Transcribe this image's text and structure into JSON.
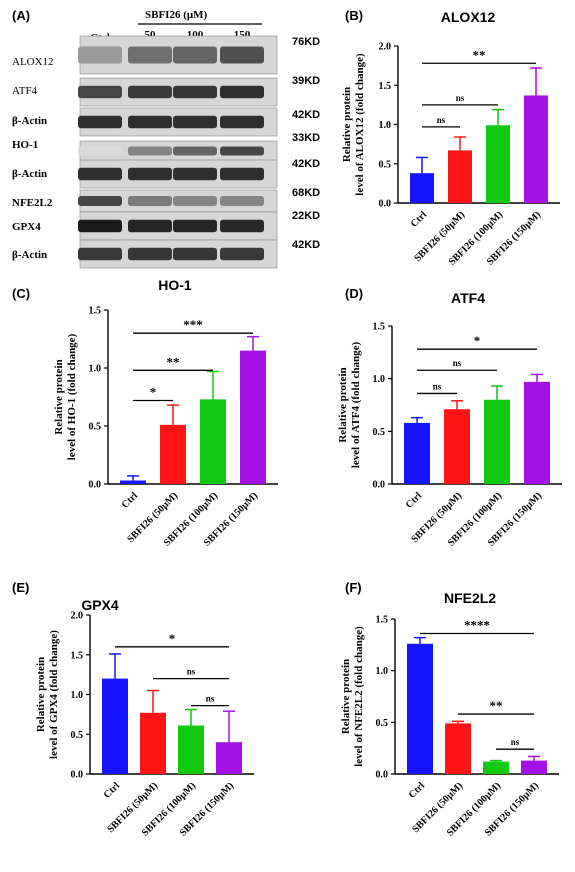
{
  "colors": [
    "#1515ff",
    "#ff1515",
    "#11c911",
    "#a311e6"
  ],
  "western_blot": {
    "panel_letter": "(A)",
    "treatment_header": "SBFI26 (μM)",
    "lane_labels": [
      "Ctrl",
      "50",
      "100",
      "150"
    ],
    "rows": [
      {
        "protein": "ALOX12",
        "kd": "76KD",
        "style": "normal",
        "intensity": [
          0.35,
          0.55,
          0.6,
          0.7
        ]
      },
      {
        "protein": "ATF4",
        "kd": "39KD",
        "style": "normal",
        "intensity": [
          0.75,
          0.8,
          0.82,
          0.85
        ]
      },
      {
        "protein": "β-Actin",
        "kd": "42KD",
        "style": "bold",
        "intensity": [
          0.85,
          0.85,
          0.85,
          0.85
        ]
      },
      {
        "protein": "HO-1",
        "kd": "33KD",
        "style": "bold",
        "intensity": [
          0.05,
          0.45,
          0.6,
          0.75
        ]
      },
      {
        "protein": "β-Actin",
        "kd": "42KD",
        "style": "bold",
        "intensity": [
          0.85,
          0.85,
          0.85,
          0.85
        ]
      },
      {
        "protein": "NFE2L2",
        "kd": "68KD",
        "style": "bold",
        "intensity": [
          0.75,
          0.5,
          0.45,
          0.45
        ]
      },
      {
        "protein": "GPX4",
        "kd": "22KD",
        "style": "bold",
        "intensity": [
          0.95,
          0.9,
          0.9,
          0.88
        ]
      },
      {
        "protein": "β-Actin",
        "kd": "42KD",
        "style": "bold",
        "intensity": [
          0.8,
          0.82,
          0.82,
          0.8
        ]
      }
    ]
  },
  "chart_data": [
    {
      "panel": "(B)",
      "type": "bar",
      "title": "ALOX12",
      "ylabel_line1": "Relative protein",
      "ylabel_line2": "level of ALOX12 (fold change)",
      "categories": [
        "Ctrl",
        "SBFI26 (50μM)",
        "SBFI26 (100μM)",
        "SBFI26 (150μM)"
      ],
      "values": [
        0.38,
        0.67,
        0.99,
        1.37
      ],
      "errors": [
        0.2,
        0.17,
        0.2,
        0.35
      ],
      "ylim": [
        0,
        2.0
      ],
      "yticks": [
        "0.0",
        "0.5",
        "1.0",
        "1.5",
        "2.0"
      ],
      "ytick_values": [
        0,
        0.5,
        1.0,
        1.5,
        2.0
      ],
      "significance": [
        {
          "from": 0,
          "to": 3,
          "label": "**",
          "y": 1.78
        },
        {
          "from": 0,
          "to": 2,
          "label": "ns",
          "y": 1.25
        },
        {
          "from": 0,
          "to": 1,
          "label": "ns",
          "y": 0.97
        }
      ]
    },
    {
      "panel": "(C)",
      "type": "bar",
      "title": "HO-1",
      "ylabel_line1": "Relative protein",
      "ylabel_line2": "level of HO-1 (fold change)",
      "categories": [
        "Ctrl",
        "SBFI26 (50μM)",
        "SBFI26 (100μM)",
        "SBFI26 (150μM)"
      ],
      "values": [
        0.03,
        0.51,
        0.73,
        1.15
      ],
      "errors": [
        0.04,
        0.17,
        0.24,
        0.12
      ],
      "ylim": [
        0,
        1.5
      ],
      "yticks": [
        "0.0",
        "0.5",
        "1.0",
        "1.5"
      ],
      "ytick_values": [
        0,
        0.5,
        1.0,
        1.5
      ],
      "significance": [
        {
          "from": 0,
          "to": 3,
          "label": "***",
          "y": 1.3
        },
        {
          "from": 0,
          "to": 2,
          "label": "**",
          "y": 0.98
        },
        {
          "from": 0,
          "to": 1,
          "label": "*",
          "y": 0.72
        }
      ]
    },
    {
      "panel": "(D)",
      "type": "bar",
      "title": "ATF4",
      "ylabel_line1": "Relative protein",
      "ylabel_line2": "level of ATF4 (fold change)",
      "categories": [
        "Ctrl",
        "SBFI26 (50μM)",
        "SBFI26 (100μM)",
        "SBFI26 (150μM)"
      ],
      "values": [
        0.58,
        0.71,
        0.8,
        0.97
      ],
      "errors": [
        0.05,
        0.08,
        0.13,
        0.07
      ],
      "ylim": [
        0,
        1.5
      ],
      "yticks": [
        "0.0",
        "0.5",
        "1.0",
        "1.5"
      ],
      "ytick_values": [
        0,
        0.5,
        1.0,
        1.5
      ],
      "significance": [
        {
          "from": 0,
          "to": 3,
          "label": "*",
          "y": 1.28
        },
        {
          "from": 0,
          "to": 2,
          "label": "ns",
          "y": 1.08
        },
        {
          "from": 0,
          "to": 1,
          "label": "ns",
          "y": 0.86
        }
      ]
    },
    {
      "panel": "(E)",
      "type": "bar",
      "title": "GPX4",
      "ylabel_line1": "Relative protein",
      "ylabel_line2": "level of GPX4 (fold change)",
      "categories": [
        "Ctrl",
        "SBFI26 (50μM)",
        "SBFI26 (100μM)",
        "SBFI26 (150μM)"
      ],
      "values": [
        1.2,
        0.77,
        0.61,
        0.4
      ],
      "errors": [
        0.31,
        0.28,
        0.2,
        0.39
      ],
      "ylim": [
        0,
        2.0
      ],
      "yticks": [
        "0.0",
        "0.5",
        "1.0",
        "1.5",
        "2.0"
      ],
      "ytick_values": [
        0,
        0.5,
        1.0,
        1.5,
        2.0
      ],
      "significance": [
        {
          "from": 0,
          "to": 3,
          "label": "*",
          "y": 1.6
        },
        {
          "from": 1,
          "to": 3,
          "label": "ns",
          "y": 1.2
        },
        {
          "from": 2,
          "to": 3,
          "label": "ns",
          "y": 0.86
        }
      ]
    },
    {
      "panel": "(F)",
      "type": "bar",
      "title": "NFE2L2",
      "ylabel_line1": "Relative protein",
      "ylabel_line2": "level of NFE2L2 (fold change)",
      "categories": [
        "Ctrl",
        "SBFI26 (50μM)",
        "SBFI26 (100μM)",
        "SBFI26 (150μM)"
      ],
      "values": [
        1.26,
        0.49,
        0.12,
        0.13
      ],
      "errors": [
        0.06,
        0.02,
        0.01,
        0.04
      ],
      "ylim": [
        0,
        1.5
      ],
      "yticks": [
        "0.0",
        "0.5",
        "1.0",
        "1.5"
      ],
      "ytick_values": [
        0,
        0.5,
        1.0,
        1.5
      ],
      "significance": [
        {
          "from": 0,
          "to": 3,
          "label": "****",
          "y": 1.36
        },
        {
          "from": 1,
          "to": 3,
          "label": "**",
          "y": 0.58
        },
        {
          "from": 2,
          "to": 3,
          "label": "ns",
          "y": 0.24
        }
      ]
    }
  ]
}
